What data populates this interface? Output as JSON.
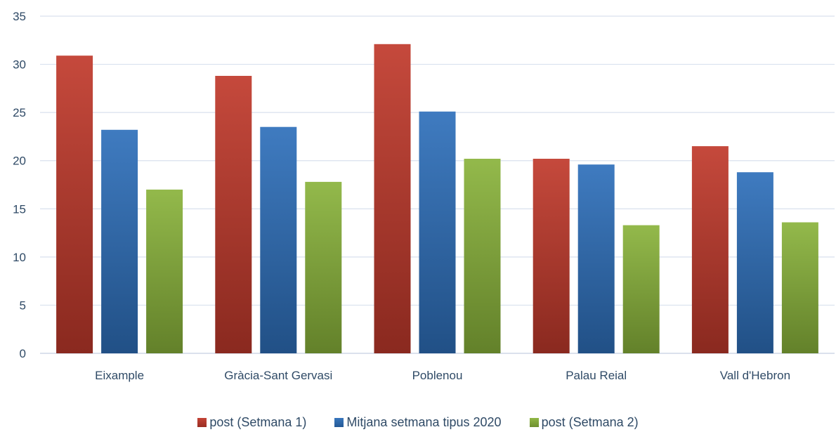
{
  "chart_data": {
    "type": "bar",
    "categories": [
      "Eixample",
      "Gràcia-Sant Gervasi",
      "Poblenou",
      "Palau Reial",
      "Vall d'Hebron"
    ],
    "series": [
      {
        "name": "post (Setmana 1)",
        "values": [
          30.9,
          28.8,
          32.1,
          20.2,
          21.5
        ],
        "color": "#c0392b"
      },
      {
        "name": "Mitjana setmana tipus 2020",
        "values": [
          23.2,
          23.5,
          25.1,
          19.6,
          18.8
        ],
        "color": "#2e6fba"
      },
      {
        "name": "post (Setmana 2)",
        "values": [
          17.0,
          17.8,
          20.2,
          13.3,
          13.6
        ],
        "color": "#8ab33b"
      }
    ],
    "ylim": [
      0,
      35
    ],
    "yticks": [
      "0",
      "5",
      "10",
      "15",
      "20",
      "25",
      "30",
      "35"
    ],
    "grid": true,
    "legend_position": "bottom",
    "title": "",
    "xlabel": "",
    "ylabel": ""
  }
}
